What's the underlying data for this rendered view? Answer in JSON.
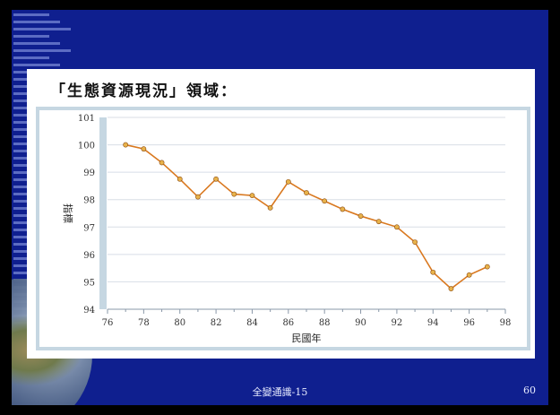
{
  "slide": {
    "heading": "「生態資源現況」領域：",
    "footer": "全變通識-15",
    "page_number": "60"
  },
  "chart_data": {
    "type": "line",
    "xlabel": "民國年",
    "ylabel": "指標",
    "xlim": [
      76,
      98
    ],
    "ylim": [
      94,
      101
    ],
    "x_ticks": [
      76,
      78,
      80,
      82,
      84,
      86,
      88,
      90,
      92,
      94,
      96,
      98
    ],
    "y_ticks": [
      94,
      95,
      96,
      97,
      98,
      99,
      100,
      101
    ],
    "y_tick_labels": [
      "94",
      "95",
      "96",
      "97",
      "98",
      "99",
      "100",
      "101"
    ],
    "grid": true,
    "series": [
      {
        "color": "#d9781f",
        "marker_color": "#e8b24a",
        "x": [
          77,
          78,
          79,
          80,
          81,
          82,
          83,
          84,
          85,
          86,
          87,
          88,
          89,
          90,
          91,
          92,
          93,
          94,
          95,
          96,
          97
        ],
        "values": [
          100.0,
          99.85,
          99.35,
          98.75,
          98.1,
          98.75,
          98.2,
          98.15,
          97.7,
          98.65,
          98.25,
          97.95,
          97.65,
          97.4,
          97.2,
          97.0,
          96.45,
          95.35,
          94.75,
          95.25,
          95.55
        ]
      }
    ]
  }
}
